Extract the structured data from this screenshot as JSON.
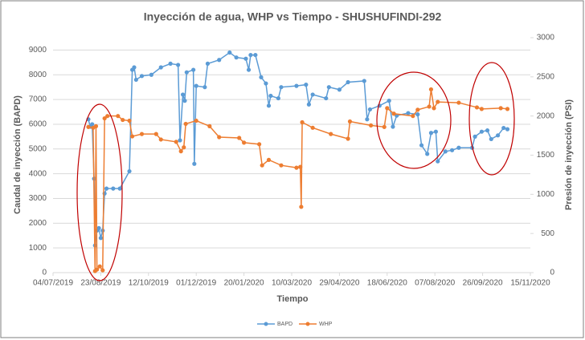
{
  "chart_data": {
    "type": "line",
    "title": "Inyección de agua, WHP vs Tiempo - SHUSHUFINDI-292",
    "x_label": "Tiempo",
    "y_label": "Caudal de inyección (BAPD)",
    "y2_label": "Presión de inyección  (PSI)",
    "xlim": [
      "04/07/2019",
      "15/11/2020"
    ],
    "xticks": [
      "04/07/2019",
      "23/08/2019",
      "12/10/2019",
      "01/12/2019",
      "20/01/2020",
      "10/03/2020",
      "29/04/2020",
      "18/06/2020",
      "07/08/2020",
      "26/09/2020",
      "15/11/2020"
    ],
    "ylim": [
      0,
      9500
    ],
    "yticks": [
      0,
      1000,
      2000,
      3000,
      4000,
      5000,
      6000,
      7000,
      8000,
      9000
    ],
    "y2lim": [
      0,
      3000
    ],
    "y2ticks": [
      0,
      500,
      1000,
      1500,
      2000,
      2500,
      3000
    ],
    "grid": true,
    "legend": "bottom",
    "series": [
      {
        "name": "BAPD",
        "color": "#5b9bd5",
        "x": [
          "10/08/2019",
          "12/08/2019",
          "14/08/2019",
          "16/08/2019",
          "17/08/2019",
          "19/08/2019",
          "21/08/2019",
          "23/08/2019",
          "25/08/2019",
          "27/08/2019",
          "29/08/2019",
          "05/09/2019",
          "12/09/2019",
          "22/09/2019",
          "25/09/2019",
          "27/09/2019",
          "29/09/2019",
          "05/10/2019",
          "15/10/2019",
          "25/10/2019",
          "04/11/2019",
          "12/11/2019",
          "14/11/2019",
          "17/11/2019",
          "19/11/2019",
          "21/11/2019",
          "28/11/2019",
          "29/11/2019",
          "01/12/2019",
          "10/12/2019",
          "13/12/2019",
          "25/12/2019",
          "05/01/2020",
          "12/01/2020",
          "22/01/2020",
          "25/01/2020",
          "27/01/2020",
          "01/02/2020",
          "07/02/2020",
          "12/02/2020",
          "15/02/2020",
          "17/02/2020",
          "25/02/2020",
          "28/02/2020",
          "15/03/2020",
          "25/03/2020",
          "28/03/2020",
          "01/04/2020",
          "15/04/2020",
          "18/04/2020",
          "29/04/2020",
          "08/05/2020",
          "25/05/2020",
          "28/05/2020",
          "31/05/2020",
          "10/06/2020",
          "20/06/2020",
          "24/06/2020",
          "28/06/2020",
          "10/07/2020",
          "20/07/2020",
          "24/07/2020",
          "30/07/2020",
          "03/08/2020",
          "08/08/2020",
          "10/08/2020",
          "18/08/2020",
          "25/08/2020",
          "01/09/2020",
          "15/09/2020",
          "18/09/2020",
          "25/09/2020",
          "01/10/2020",
          "05/10/2020",
          "12/10/2020",
          "18/10/2020",
          "22/10/2020"
        ],
        "values": [
          6200,
          5900,
          6000,
          3800,
          1100,
          1700,
          1800,
          1400,
          1700,
          3200,
          3400,
          3400,
          3400,
          4100,
          8200,
          8300,
          7800,
          7950,
          8000,
          8300,
          8450,
          8400,
          5350,
          7200,
          6950,
          8100,
          8200,
          4400,
          7550,
          7500,
          8450,
          8600,
          8900,
          8700,
          8650,
          8200,
          8800,
          8800,
          7900,
          7650,
          6750,
          7150,
          7050,
          7500,
          7550,
          7600,
          6800,
          7200,
          7050,
          7500,
          7400,
          7700,
          7750,
          6200,
          6600,
          6750,
          6950,
          5900,
          6350,
          6450,
          6400,
          5150,
          4800,
          5650,
          5700,
          4500,
          4900,
          4950,
          5050,
          5050,
          5500,
          5700,
          5750,
          5400,
          5550,
          5850,
          5800
        ]
      },
      {
        "name": "WHP",
        "color": "#ed7d31",
        "axis": "y2",
        "x": [
          "10/08/2019",
          "15/08/2019",
          "17/08/2019",
          "18/08/2019",
          "19/08/2019",
          "22/08/2019",
          "25/08/2019",
          "27/08/2019",
          "30/08/2019",
          "10/09/2019",
          "15/09/2019",
          "22/09/2019",
          "25/09/2019",
          "05/10/2019",
          "20/10/2019",
          "25/10/2019",
          "10/11/2019",
          "15/11/2019",
          "18/11/2019",
          "20/11/2019",
          "01/12/2019",
          "15/12/2019",
          "25/12/2019",
          "15/01/2020",
          "20/01/2020",
          "05/02/2020",
          "08/02/2020",
          "15/02/2020",
          "28/02/2020",
          "15/03/2020",
          "19/03/2020",
          "20/03/2020",
          "21/03/2020",
          "01/04/2020",
          "20/04/2020",
          "08/05/2020",
          "10/05/2020",
          "01/06/2020",
          "15/06/2020",
          "18/06/2020",
          "25/06/2020",
          "15/07/2020",
          "20/07/2020",
          "01/08/2020",
          "03/08/2020",
          "06/08/2020",
          "10/08/2020",
          "01/09/2020",
          "20/09/2020",
          "25/09/2020",
          "15/10/2020",
          "22/10/2020"
        ],
        "values": [
          1860,
          1850,
          20,
          1870,
          40,
          80,
          30,
          1970,
          2000,
          2000,
          1950,
          1940,
          1740,
          1770,
          1770,
          1700,
          1670,
          1550,
          1600,
          1900,
          1940,
          1870,
          1730,
          1720,
          1660,
          1640,
          1370,
          1440,
          1370,
          1340,
          1350,
          840,
          1920,
          1850,
          1770,
          1710,
          1930,
          1880,
          1860,
          2100,
          2030,
          2000,
          2080,
          2120,
          2340,
          2100,
          2180,
          2170,
          2110,
          2090,
          2100,
          2090
        ]
      }
    ]
  }
}
